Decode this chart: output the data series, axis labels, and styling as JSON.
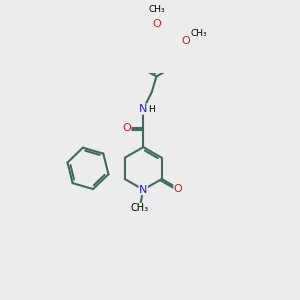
{
  "bg_color": "#ececec",
  "bond_color": "#3d6b5e",
  "bond_width": 1.5,
  "N_color": "#2222cc",
  "O_color": "#cc2222",
  "text_color": "#000000",
  "font_size": 8.0,
  "figsize": [
    3.0,
    3.0
  ],
  "dpi": 100,
  "xlim": [
    0,
    10
  ],
  "ylim": [
    0,
    10
  ]
}
